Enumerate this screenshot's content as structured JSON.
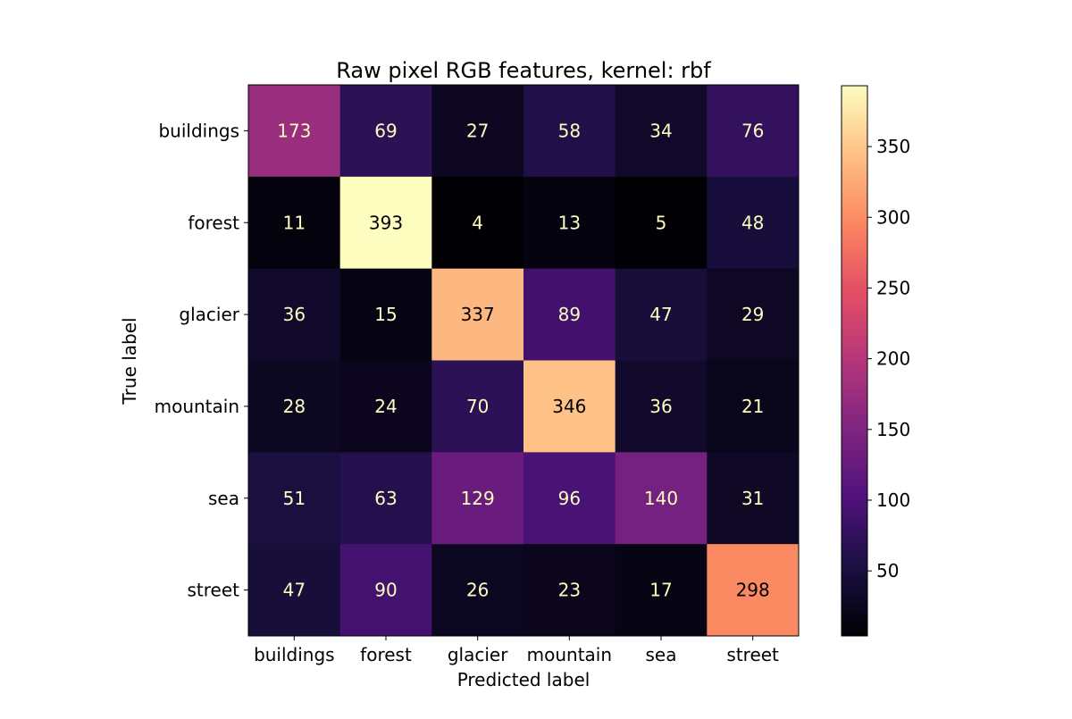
{
  "chart_data": {
    "type": "heatmap",
    "title": "Raw pixel RGB features, kernel: rbf",
    "xlabel": "Predicted label",
    "ylabel": "True label",
    "x_categories": [
      "buildings",
      "forest",
      "glacier",
      "mountain",
      "sea",
      "street"
    ],
    "y_categories": [
      "buildings",
      "forest",
      "glacier",
      "mountain",
      "sea",
      "street"
    ],
    "values": [
      [
        173,
        69,
        27,
        58,
        34,
        76
      ],
      [
        11,
        393,
        4,
        13,
        5,
        48
      ],
      [
        36,
        15,
        337,
        89,
        47,
        29
      ],
      [
        28,
        24,
        70,
        346,
        36,
        21
      ],
      [
        51,
        63,
        129,
        96,
        140,
        31
      ],
      [
        47,
        90,
        26,
        23,
        17,
        298
      ]
    ],
    "colormap": "magma",
    "colorbar": {
      "range": [
        4,
        393
      ],
      "ticks": [
        50,
        100,
        150,
        200,
        250,
        300,
        350
      ]
    },
    "label_colors": {
      "on_dark": "#fcfdbf",
      "on_light": "#000004"
    },
    "grid": false,
    "legend": "colorbar-right"
  }
}
